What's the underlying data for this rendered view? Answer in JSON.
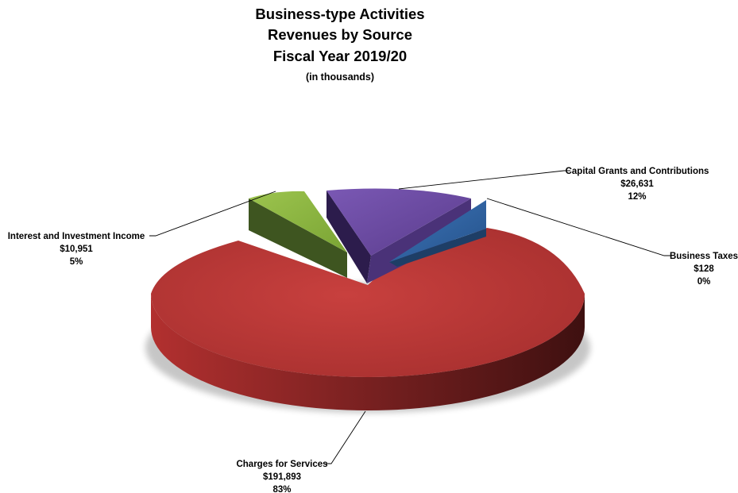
{
  "chart_data": {
    "type": "pie",
    "style": "3d-exploded",
    "title": "Business-type Activities",
    "subtitle_lines": [
      "Revenues by Source",
      "Fiscal Year 2019/20"
    ],
    "unit_note": "(in thousands)",
    "slices": [
      {
        "name": "Capital Grants and Contributions",
        "value": 26631,
        "value_label": "$26,631",
        "percent_label": "12%",
        "color": "#6b4aa0"
      },
      {
        "name": "Business Taxes",
        "value": 128,
        "value_label": "$128",
        "percent_label": "0%",
        "color": "#2e5f9e"
      },
      {
        "name": "Charges for Services",
        "value": 191893,
        "value_label": "$191,893",
        "percent_label": "83%",
        "color": "#c0393a"
      },
      {
        "name": "Interest and Investment Income",
        "value": 10951,
        "value_label": "$10,951",
        "percent_label": "5%",
        "color": "#8bb53d"
      }
    ]
  }
}
